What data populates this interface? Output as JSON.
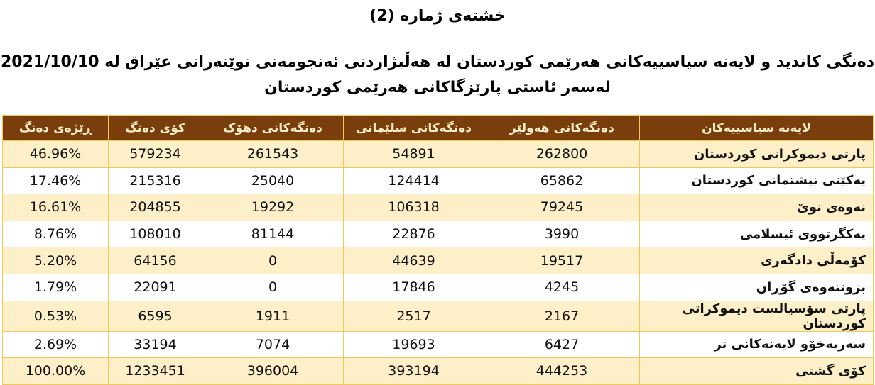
{
  "title": "خشتەی ژمارە (2)",
  "subtitle_line1": "دەنگی کاندید و لایەنە سیاسییەکانی هەرێمی کوردستان لە هەڵبژاردنی ئەنجومەنی نوێنەرانی عێراق لە 2021/10/10",
  "subtitle_line2": "لەسەر ئاستی پارێزگاکانی هەرێمی کوردستان",
  "colors": {
    "header_bg": "#7a3d0c",
    "header_text": "#fdf0c8",
    "row_alt": "#fdefc8",
    "border": "#f0c75a"
  },
  "table": {
    "headers": [
      "لایەنە سیاسییەکان",
      "دەنگەکانی هەولێر",
      "دەنگەکانی سلێمانی",
      "دەنگەکانی دهۆک",
      "کۆی دەنگ",
      "ڕێژەی دەنگ"
    ],
    "rows": [
      [
        "پارتی دیموکراتی کوردستان",
        "262800",
        "54891",
        "261543",
        "579234",
        "46.96%"
      ],
      [
        "یەکێتی نیشتمانی کوردستان",
        "65862",
        "124414",
        "25040",
        "215316",
        "17.46%"
      ],
      [
        "نەوەی نوێ",
        "79245",
        "106318",
        "19292",
        "204855",
        "16.61%"
      ],
      [
        "یەکگرتووی ئیسلامی",
        "3990",
        "22876",
        "81144",
        "108010",
        "8.76%"
      ],
      [
        "کۆمەڵی دادگەری",
        "19517",
        "44639",
        "0",
        "64156",
        "5.20%"
      ],
      [
        "بزوتنەوەی گۆڕان",
        "4245",
        "17846",
        "0",
        "22091",
        "1.79%"
      ],
      [
        "پارتی سۆسیالست دیموکراتی کوردستان",
        "2167",
        "2517",
        "1911",
        "6595",
        "0.53%"
      ],
      [
        "سەربەخۆو لایەنەکانی تر",
        "6427",
        "19693",
        "7074",
        "33194",
        "2.69%"
      ],
      [
        "کۆی گشتی",
        "444253",
        "393194",
        "396004",
        "1233451",
        "100.00%"
      ]
    ]
  }
}
